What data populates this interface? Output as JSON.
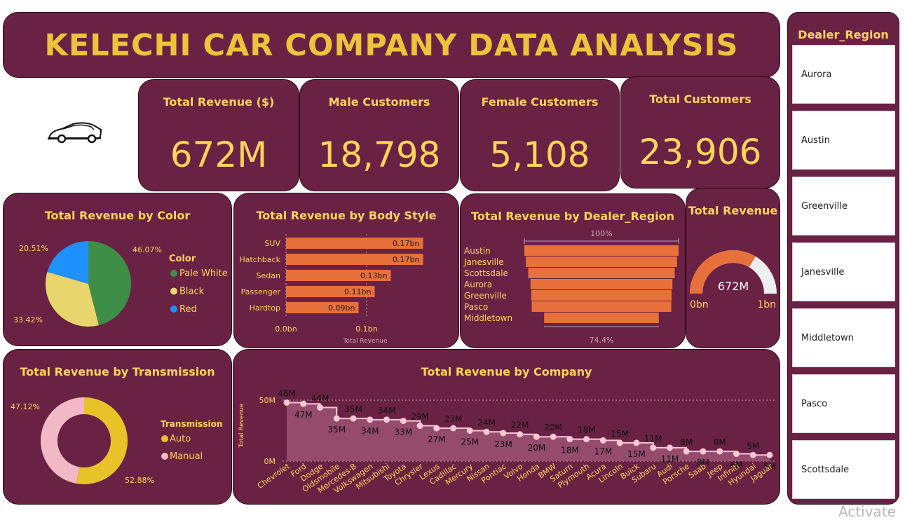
{
  "header": {
    "title": "KELECHI CAR COMPANY DATA ANALYSIS"
  },
  "logo": {
    "icon": "car-icon"
  },
  "kpis": {
    "revenue": {
      "title": "Total Revenue ($)",
      "value": "672M"
    },
    "male": {
      "title": "Male Customers",
      "value": "18,798"
    },
    "female": {
      "title": "Female Customers",
      "value": "5,108"
    },
    "total": {
      "title": "Total Customers",
      "value": "23,906"
    }
  },
  "colors": {
    "card_bg": "#6a2244",
    "title_yellow": "#ffd45a",
    "bar_orange": "#e8703a",
    "green": "#3e8e47",
    "yellow": "#e8d56c",
    "blue": "#1e90ff",
    "auto": "#e8c229",
    "manual": "#f2b8c6",
    "line_pink": "#f8c8d4"
  },
  "slicer": {
    "title": "Dealer_Region",
    "items": [
      "Aurora",
      "Austin",
      "Greenville",
      "Janesville",
      "Middletown",
      "Pasco",
      "Scottsdale"
    ]
  },
  "watermark": "Activate",
  "chart_data": [
    {
      "type": "pie",
      "title": "Total Revenue by Color",
      "legend_title": "Color",
      "slices": [
        {
          "name": "Pale White",
          "value": 46.07,
          "label": "46.07%",
          "color": "#3e8e47"
        },
        {
          "name": "Black",
          "value": 33.42,
          "label": "33.42%",
          "color": "#e8d56c"
        },
        {
          "name": "Red",
          "value": 20.51,
          "label": "20.51%",
          "color": "#1e90ff"
        }
      ]
    },
    {
      "type": "bar",
      "orientation": "horizontal",
      "title": "Total Revenue by Body Style",
      "xlabel": "Total Revenue",
      "categories": [
        "SUV",
        "Hatchback",
        "Sedan",
        "Passenger",
        "Hardtop"
      ],
      "values": [
        0.17,
        0.17,
        0.13,
        0.11,
        0.09
      ],
      "value_labels": [
        "0.17bn",
        "0.17bn",
        "0.13bn",
        "0.11bn",
        "0.09bn"
      ],
      "xlim": [
        0,
        0.18
      ],
      "ticks": [
        {
          "value": 0,
          "label": "0.0bn"
        },
        {
          "value": 0.1,
          "label": "0.1bn"
        }
      ]
    },
    {
      "type": "bar",
      "orientation": "funnel",
      "title": "Total Revenue by Dealer_Region",
      "categories": [
        "Austin",
        "Janesville",
        "Scottsdale",
        "Aurora",
        "Greenville",
        "Pasco",
        "Middletown"
      ],
      "values": [
        100,
        98,
        95,
        92,
        91,
        90.5,
        74.4
      ],
      "top_label": "100%",
      "bottom_label": "74.4%"
    },
    {
      "type": "gauge",
      "title": "Total Revenue",
      "value": 672,
      "value_label": "672M",
      "min": 0,
      "max": 1000,
      "min_label": "0bn",
      "max_label": "1bn"
    },
    {
      "type": "pie",
      "donut": true,
      "title": "Total Revenue by Transmission",
      "legend_title": "Transmission",
      "slices": [
        {
          "name": "Auto",
          "value": 52.88,
          "label": "52.88%",
          "color": "#e8c229"
        },
        {
          "name": "Manual",
          "value": 47.12,
          "label": "47.12%",
          "color": "#f2b8c6"
        }
      ]
    },
    {
      "type": "area",
      "title": "Total Revenue by Company",
      "ylabel": "Total Revenue",
      "ylim": [
        0,
        55
      ],
      "ticks": [
        {
          "value": 0,
          "label": "0M"
        },
        {
          "value": 50,
          "label": "50M"
        }
      ],
      "categories": [
        "Chevrolet",
        "Ford",
        "Dodge",
        "Oldsmobile",
        "Mercedes-B",
        "Volkswagen",
        "Mitsubishi",
        "Toyota",
        "Chrysler",
        "Lexus",
        "Cadillac",
        "Mercury",
        "Nissan",
        "Pontiac",
        "Volvo",
        "Honda",
        "BMW",
        "Saturn",
        "Plymouth",
        "Acura",
        "Lincoln",
        "Buick",
        "Subaru",
        "Audi",
        "Porsche",
        "Saab",
        "Jeep",
        "Infiniti",
        "Hyundai",
        "Jaguar"
      ],
      "values": [
        48,
        47,
        44,
        35,
        35,
        34,
        34,
        33,
        29,
        27,
        27,
        25,
        24,
        23,
        22,
        20,
        20,
        18,
        18,
        17,
        15,
        15,
        11,
        11,
        8,
        8,
        8,
        6,
        5,
        5
      ],
      "value_labels": [
        "48M",
        "47M",
        "44M",
        "35M",
        "35M",
        "34M",
        "34M",
        "33M",
        "29M",
        "27M",
        "27M",
        "25M",
        "24M",
        "23M",
        "22M",
        "20M",
        "20M",
        "18M",
        "18M",
        "17M",
        "15M",
        "15M",
        "11M",
        "11M",
        "8M",
        "8M",
        "8M",
        "6M",
        "5M",
        "5M"
      ]
    }
  ]
}
